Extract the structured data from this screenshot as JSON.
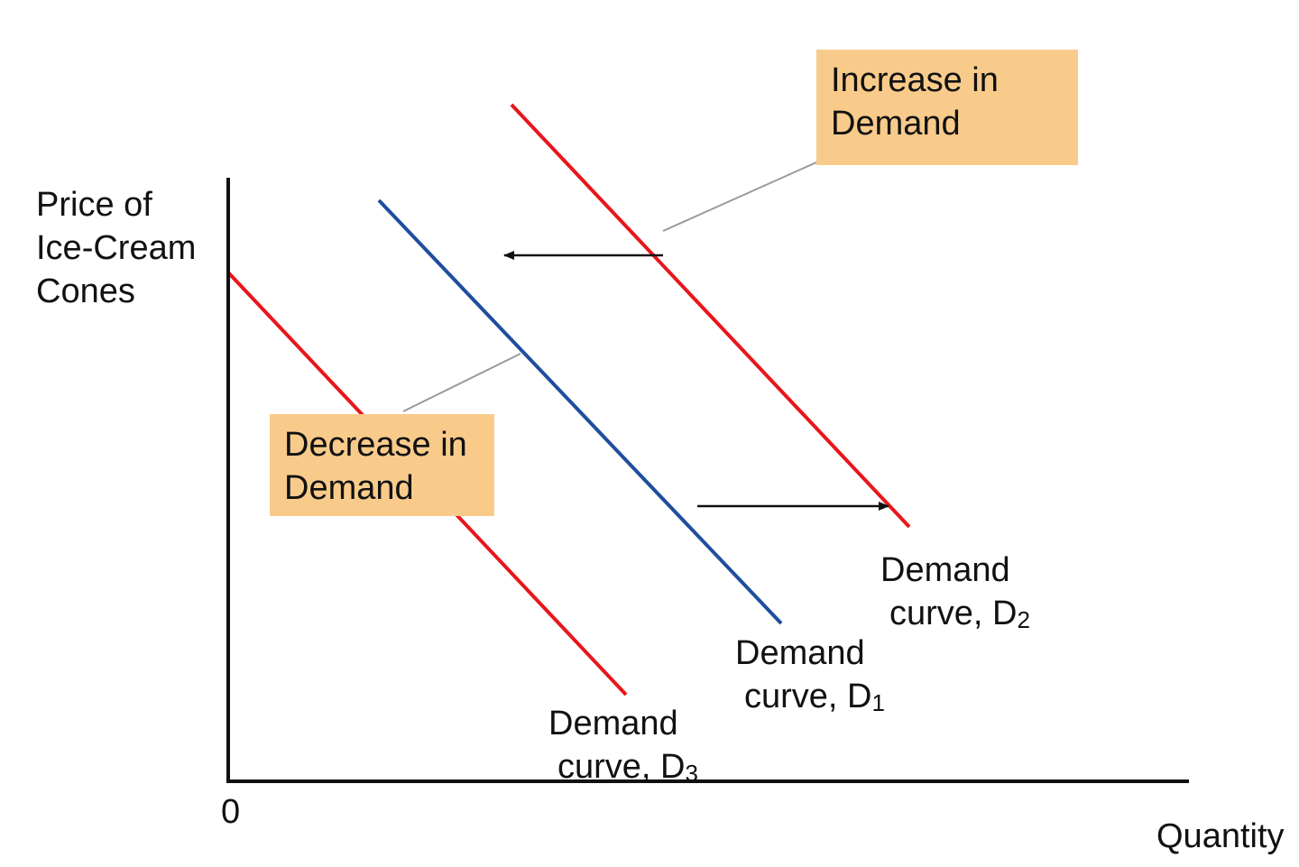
{
  "axes": {
    "y_label_lines": [
      "Price of",
      "Ice-Cream",
      "Cones"
    ],
    "x_label": "Quantity",
    "origin_label": "0"
  },
  "curves": {
    "d1": {
      "line1": "Demand",
      "line2": "curve, D",
      "subscript": "1",
      "color": "#1f4e9e"
    },
    "d2": {
      "line1": "Demand",
      "line2": "curve, D",
      "subscript": "2",
      "color": "#e8161b"
    },
    "d3": {
      "line1": "Demand",
      "line2": "curve, D",
      "subscript": "3",
      "color": "#e8161b"
    }
  },
  "callouts": {
    "increase": {
      "lines": [
        "Increase in",
        "Demand"
      ],
      "fill": "#f9cb8b"
    },
    "decrease": {
      "lines": [
        "Decrease in",
        "Demand"
      ],
      "fill": "#f9cb8b"
    }
  },
  "colors": {
    "axis": "#111111",
    "arrow": "#111111",
    "leader": "#9a9a9a"
  }
}
